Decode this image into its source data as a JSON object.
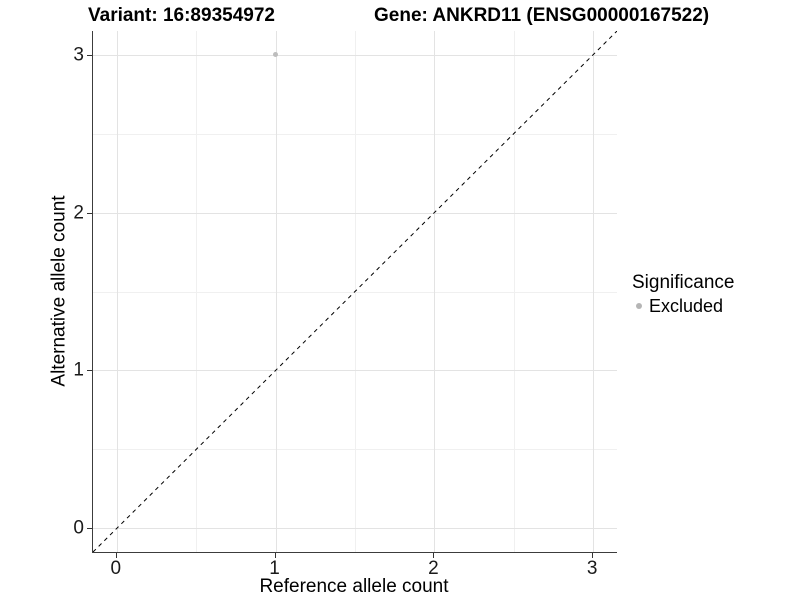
{
  "titles": {
    "left": "Variant: 16:89354972",
    "right": "Gene: ANKRD11 (ENSG00000167522)"
  },
  "chart_data": {
    "type": "scatter",
    "xlabel": "Reference allele count",
    "ylabel": "Alternative allele count",
    "xlim": [
      -0.15,
      3.15
    ],
    "ylim": [
      -0.15,
      3.15
    ],
    "x_ticks": [
      0,
      1,
      2,
      3
    ],
    "y_ticks": [
      0,
      1,
      2,
      3
    ],
    "x_minor_ticks": [
      0.5,
      1.5,
      2.5
    ],
    "y_minor_ticks": [
      0.5,
      1.5,
      2.5
    ],
    "grid": "major-and-minor",
    "points": [
      {
        "x": 1,
        "y": 3,
        "series": "Excluded"
      }
    ],
    "reference_line": {
      "kind": "identity",
      "slope": 1,
      "intercept": 0,
      "style": "dashed",
      "color": "#000000"
    },
    "legend": {
      "title": "Significance",
      "position": "right",
      "items": [
        {
          "label": "Excluded",
          "color": "#b5b5b5",
          "marker": "circle"
        }
      ]
    }
  },
  "colors": {
    "point": "#bdbdbd",
    "grid_major": "#e3e3e3",
    "grid_minor": "#f0f0f0",
    "axis_line": "#3c3c3c",
    "tick": "#333333",
    "text": "#000000"
  }
}
